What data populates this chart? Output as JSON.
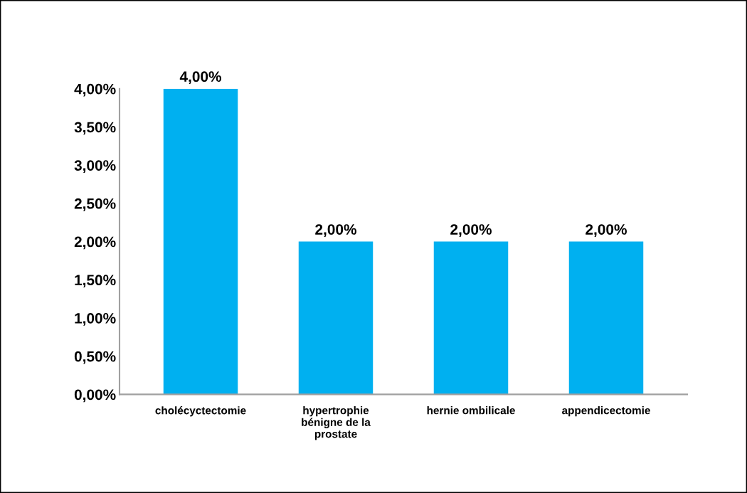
{
  "chart_data": {
    "type": "bar",
    "categories": [
      "cholécyctectomie",
      "hypertrophie\nbénigne de la\nprostate",
      "hernie ombilicale",
      "appendicectomie"
    ],
    "values": [
      4,
      2,
      2,
      2
    ],
    "value_labels": [
      "4,00%",
      "2,00%",
      "2,00%",
      "2,00%"
    ],
    "color": "#00b0f0",
    "ylim": [
      0,
      4
    ],
    "yticks": [
      {
        "value": 0,
        "label": "0,00%"
      },
      {
        "value": 0.5,
        "label": "0,50%"
      },
      {
        "value": 1,
        "label": "1,00%"
      },
      {
        "value": 1.5,
        "label": "1,50%"
      },
      {
        "value": 2,
        "label": "2,00%"
      },
      {
        "value": 2.5,
        "label": "2,50%"
      },
      {
        "value": 3,
        "label": "3,00%"
      },
      {
        "value": 3.5,
        "label": "3,50%"
      },
      {
        "value": 4,
        "label": "4,00%"
      }
    ],
    "grid": false,
    "legend": false
  }
}
